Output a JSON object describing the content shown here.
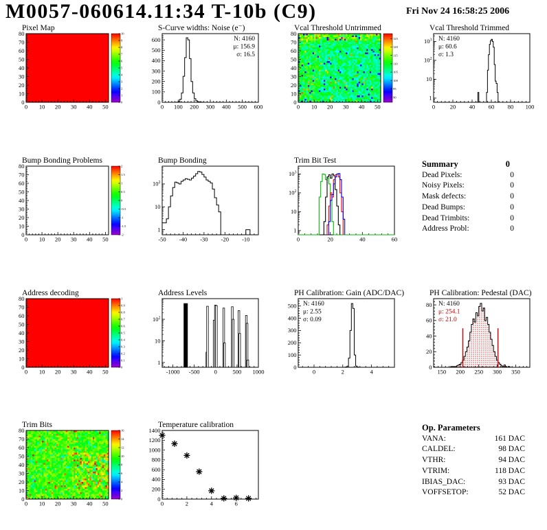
{
  "header": {
    "title": "M0057-060614.11:34 T-10b (C9)",
    "date": "Fri Nov 24 16:58:25 2006"
  },
  "summary": {
    "title": "Summary",
    "total": "0",
    "rows": [
      {
        "label": "Dead Pixels:",
        "value": "0"
      },
      {
        "label": "Noisy Pixels:",
        "value": "0"
      },
      {
        "label": "Mask defects:",
        "value": "0"
      },
      {
        "label": "Dead Bumps:",
        "value": "0"
      },
      {
        "label": "Dead Trimbits:",
        "value": "0"
      },
      {
        "label": "Address Probl:",
        "value": "0"
      }
    ]
  },
  "op_parameters": {
    "title": "Op. Parameters",
    "rows": [
      {
        "label": "VANA:",
        "value": "161 DAC"
      },
      {
        "label": "CALDEL:",
        "value": "98 DAC"
      },
      {
        "label": "VTHR:",
        "value": "94 DAC"
      },
      {
        "label": "VTRIM:",
        "value": "118 DAC"
      },
      {
        "label": "IBIAS_DAC:",
        "value": "93 DAC"
      },
      {
        "label": "VOFFSETOP:",
        "value": "52 DAC"
      }
    ]
  },
  "palette": {
    "max_color": "#ff0000",
    "stat_red": "#cc0000"
  },
  "chart_data": [
    {
      "id": "pixel_map",
      "type": "heatmap",
      "variant": "solid",
      "title": "Pixel Map",
      "x": [
        0,
        52
      ],
      "y": [
        0,
        80
      ],
      "xticks": [
        0,
        10,
        20,
        30,
        40,
        50
      ],
      "yticks": [
        0,
        10,
        20,
        30,
        40,
        50,
        60,
        70,
        80
      ],
      "colorbar": {
        "min": 0,
        "max": 10,
        "ticks": [
          0,
          1,
          2,
          3,
          4,
          5,
          6,
          7,
          8,
          9,
          10
        ]
      }
    },
    {
      "id": "scurve_noise",
      "type": "hist",
      "title": "S-Curve widths: Noise (e⁻)",
      "x": [
        0,
        600
      ],
      "y": [
        0,
        660
      ],
      "xticks": [
        0,
        100,
        200,
        300,
        400,
        500,
        600
      ],
      "yticks": [
        0,
        100,
        200,
        300,
        400,
        500,
        600
      ],
      "stats": {
        "pos": "right",
        "lines": [
          "N: 4160",
          "μ: 156.9",
          "σ: 16.5"
        ]
      },
      "bins": {
        "x0": 90,
        "bw": 10,
        "counts": [
          2,
          8,
          30,
          90,
          250,
          430,
          620,
          600,
          420,
          200,
          90,
          35,
          15,
          6,
          3,
          2,
          1
        ]
      }
    },
    {
      "id": "vcal_untrimmed",
      "type": "heatmap",
      "variant": "noise",
      "seed": 42,
      "base": 107,
      "spread": 11,
      "title": "Vcal Threshold Untrimmed",
      "x": [
        0,
        52
      ],
      "y": [
        0,
        80
      ],
      "xticks": [
        0,
        10,
        20,
        30,
        40,
        50
      ],
      "yticks": [
        0,
        10,
        20,
        30,
        40,
        50,
        60,
        70,
        80
      ],
      "colorbar": {
        "min": 87,
        "max": 128,
        "ticks": [
          90,
          95,
          100,
          105,
          110,
          115,
          120,
          125
        ]
      }
    },
    {
      "id": "vcal_trimmed",
      "type": "hist",
      "ylog": true,
      "title": "Vcal Threshold Trimmed",
      "x": [
        0,
        100
      ],
      "y": [
        0.6,
        2600
      ],
      "xticks": [
        0,
        20,
        40,
        60,
        80,
        100
      ],
      "yticks": [
        1,
        10,
        100,
        1000
      ],
      "stats": {
        "pos": "left",
        "lines": [
          "N: 4160",
          "μ: 60.6",
          "σ:  1.3"
        ]
      },
      "bins": {
        "x0": 46,
        "bw": 1,
        "counts": [
          2,
          0,
          0,
          0,
          0,
          0,
          0,
          0,
          0,
          2,
          30,
          200,
          700,
          1100,
          1300,
          1000,
          500,
          60,
          8,
          6,
          2
        ]
      }
    },
    {
      "id": "bump_problems",
      "type": "heatmap",
      "variant": "empty",
      "title": "Bump Bonding Problems",
      "x": [
        0,
        52
      ],
      "y": [
        0,
        80
      ],
      "xticks": [
        0,
        10,
        20,
        30,
        40,
        50
      ],
      "yticks": [
        0,
        10,
        20,
        30,
        40,
        50,
        60,
        70,
        80
      ],
      "colorbar": {
        "min": -2,
        "max": 2,
        "ticks": [
          -2,
          -1.5,
          -1,
          -0.5,
          0,
          0.5,
          1,
          1.5,
          2
        ]
      }
    },
    {
      "id": "bump_bonding",
      "type": "hist",
      "ylog": true,
      "title": "Bump Bonding",
      "x": [
        -50,
        -4
      ],
      "y": [
        0.6,
        600
      ],
      "xticks": [
        -50,
        -40,
        -30,
        -20,
        -10
      ],
      "yticks": [
        1,
        10,
        100
      ],
      "bins": {
        "x0": -50,
        "bw": 1,
        "counts": [
          2,
          2,
          3,
          10,
          30,
          70,
          120,
          110,
          100,
          130,
          150,
          170,
          160,
          150,
          180,
          220,
          280,
          350,
          330,
          260,
          200,
          150,
          130,
          110,
          60,
          25,
          12,
          6,
          0,
          0,
          0,
          0,
          0,
          0,
          0,
          0,
          0,
          0,
          0,
          0,
          1,
          1,
          0,
          0,
          0,
          0
        ]
      }
    },
    {
      "id": "trim_bit_test",
      "type": "multihist",
      "ylog": true,
      "title": "Trim Bit Test",
      "x": [
        0,
        60
      ],
      "y": [
        0.6,
        2600
      ],
      "xticks": [
        0,
        20,
        40,
        60
      ],
      "yticks": [
        1,
        10,
        100,
        1000
      ],
      "series": [
        {
          "color": "#00bb00",
          "x0": 13,
          "bw": 1,
          "counts": [
            60,
            400,
            1000,
            950,
            500,
            600,
            300,
            80,
            3
          ],
          "baselineFull": true
        },
        {
          "color": "#000000",
          "x0": 16,
          "bw": 1,
          "counts": [
            3,
            60,
            700,
            900,
            600,
            1000,
            800,
            150,
            20,
            2
          ]
        },
        {
          "color": "#ee0000",
          "x0": 18,
          "bw": 1,
          "counts": [
            2,
            20,
            100,
            60,
            500,
            900,
            1000,
            700,
            100,
            10
          ]
        },
        {
          "color": "#0000ee",
          "x0": 19,
          "bw": 1,
          "counts": [
            3,
            40,
            80,
            300,
            700,
            1000,
            1050,
            500,
            60,
            4
          ]
        }
      ]
    },
    {
      "id": "address_decoding",
      "type": "heatmap",
      "variant": "solid",
      "title": "Address decoding",
      "x": [
        0,
        52
      ],
      "y": [
        0,
        80
      ],
      "xticks": [
        0,
        10,
        20,
        30,
        40,
        50
      ],
      "yticks": [
        0,
        10,
        20,
        30,
        40,
        50,
        60,
        70,
        80
      ],
      "colorbar": {
        "min": 0,
        "max": 1,
        "ticks": [
          0,
          0.1,
          0.2,
          0.3,
          0.4,
          0.5,
          0.6,
          0.7,
          0.8,
          0.9,
          1
        ]
      }
    },
    {
      "id": "address_levels",
      "type": "spikes",
      "ylog": true,
      "title": "Address Levels",
      "x": [
        -1250,
        1000
      ],
      "y": [
        0.6,
        900
      ],
      "xticks": [
        -1000,
        -500,
        0,
        500,
        1000
      ],
      "yticks": [
        1,
        10,
        100
      ],
      "bars": [
        [
          -700,
          550,
          6
        ],
        [
          -205,
          3
        ],
        [
          -190,
          400
        ],
        [
          -35,
          90
        ],
        [
          -5,
          450
        ],
        [
          18,
          430
        ],
        [
          190,
          330
        ],
        [
          207,
          8
        ],
        [
          390,
          380
        ],
        [
          410,
          100
        ],
        [
          545,
          250
        ],
        [
          563,
          22
        ],
        [
          718,
          150
        ],
        [
          736,
          65
        ],
        [
          753,
          1.3
        ]
      ]
    },
    {
      "id": "ph_gain",
      "type": "hist",
      "title": "PH Calibration: Gain (ADC/DAC)",
      "x": [
        -1.1,
        5.6
      ],
      "y": [
        0,
        560
      ],
      "xticks": [
        0,
        2,
        4
      ],
      "yticks": [
        0,
        100,
        200,
        300,
        400,
        500
      ],
      "stats": {
        "pos": "left",
        "lines": [
          "N: 4160",
          "μ: 2.55",
          "σ: 0.09"
        ]
      },
      "bins": {
        "x0": 2.1,
        "bw": 0.1,
        "counts": [
          1,
          3,
          10,
          75,
          300,
          520,
          480,
          100,
          10,
          2
        ]
      }
    },
    {
      "id": "ph_pedestal",
      "type": "hist",
      "fill": "hatchred",
      "title": "PH Calibration: Pedestal (DAC)",
      "x": [
        128,
        388
      ],
      "y": [
        0,
        88
      ],
      "xticks": [
        150,
        200,
        250,
        300,
        350
      ],
      "yticks": [
        0,
        20,
        40,
        60,
        80
      ],
      "stats": {
        "pos": "left",
        "lines": [
          "N: 4160",
          "μ: 254.1",
          "σ: 21.0"
        ],
        "colors": [
          "#000000",
          "#cc0000",
          "#cc0000"
        ]
      },
      "redlines": [
        207,
        302
      ],
      "bins": {
        "x0": 174,
        "bw": 4,
        "counts": [
          1,
          0,
          1,
          1,
          2,
          3,
          4,
          6,
          9,
          14,
          20,
          26,
          34,
          45,
          55,
          62,
          58,
          70,
          66,
          78,
          82,
          72,
          76,
          60,
          64,
          55,
          45,
          36,
          28,
          20,
          14,
          9,
          6,
          4,
          2,
          1,
          3,
          1,
          0,
          1
        ]
      }
    },
    {
      "id": "trim_bits",
      "type": "heatmap",
      "variant": "noise",
      "seed": 7,
      "base": 10,
      "spread": 3.5,
      "title": "Trim Bits",
      "x": [
        0,
        52
      ],
      "y": [
        0,
        80
      ],
      "xticks": [
        0,
        10,
        20,
        30,
        40,
        50
      ],
      "yticks": [
        0,
        10,
        20,
        30,
        40,
        50,
        60,
        70,
        80
      ],
      "colorbar": {
        "min": 0,
        "max": 16,
        "ticks": [
          0,
          2,
          4,
          6,
          8,
          10,
          12,
          14,
          16
        ]
      }
    },
    {
      "id": "temperature",
      "type": "scatter",
      "title": "Temperature calibration",
      "x": [
        0,
        7.8
      ],
      "y": [
        0,
        1400
      ],
      "xticks": [
        0,
        2,
        4,
        6
      ],
      "yticks": [
        0,
        200,
        400,
        600,
        800,
        1000,
        1200,
        1400
      ],
      "points": [
        [
          0,
          1300
        ],
        [
          1,
          1130
        ],
        [
          2,
          890
        ],
        [
          3,
          560
        ],
        [
          4,
          170
        ],
        [
          5,
          15
        ],
        [
          6,
          25
        ],
        [
          7,
          15
        ]
      ]
    }
  ]
}
